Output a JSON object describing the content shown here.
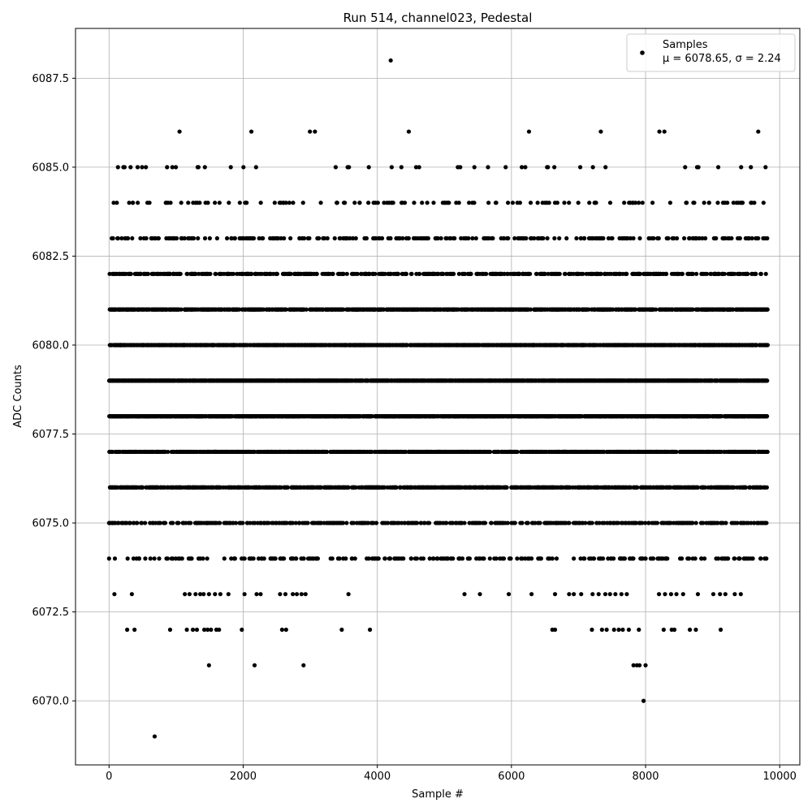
{
  "chart_data": {
    "type": "scatter",
    "title": "Run 514, channel023, Pedestal",
    "xlabel": "Sample #",
    "ylabel": "ADC Counts",
    "xlim": [
      -500,
      10300
    ],
    "ylim": [
      6068.2,
      6088.9
    ],
    "xticks": [
      0,
      2000,
      4000,
      6000,
      8000,
      10000
    ],
    "xtick_labels": [
      "0",
      "2000",
      "4000",
      "6000",
      "8000",
      "10000"
    ],
    "yticks": [
      6070.0,
      6072.5,
      6075.0,
      6077.5,
      6080.0,
      6082.5,
      6085.0,
      6087.5
    ],
    "ytick_labels": [
      "6070.0",
      "6072.5",
      "6075.0",
      "6077.5",
      "6080.0",
      "6082.5",
      "6085.0",
      "6087.5"
    ],
    "grid": true,
    "legend_position": "upper-right",
    "marker_color": "#000000",
    "series": [
      {
        "name": "Samples",
        "legend_line1": "Samples",
        "legend_line2": "μ = 6078.65, σ = 2.24",
        "mean": 6078.65,
        "sigma": 2.24,
        "n_samples": 9820,
        "x_range": [
          0,
          9820
        ],
        "points": [
          {
            "x": 680,
            "y": 6069
          },
          {
            "x": 7970,
            "y": 6070
          },
          {
            "x": 1490,
            "y": 6071
          },
          {
            "x": 2170,
            "y": 6071
          },
          {
            "x": 2900,
            "y": 6071
          },
          {
            "x": 7820,
            "y": 6071
          },
          {
            "x": 7870,
            "y": 6071
          },
          {
            "x": 7910,
            "y": 6071
          },
          {
            "x": 8000,
            "y": 6071
          },
          {
            "x": 270,
            "y": 6072
          },
          {
            "x": 380,
            "y": 6072
          },
          {
            "x": 910,
            "y": 6072
          },
          {
            "x": 1160,
            "y": 6072
          },
          {
            "x": 1250,
            "y": 6072
          },
          {
            "x": 1310,
            "y": 6072
          },
          {
            "x": 1420,
            "y": 6072
          },
          {
            "x": 1470,
            "y": 6072
          },
          {
            "x": 1520,
            "y": 6072
          },
          {
            "x": 1600,
            "y": 6072
          },
          {
            "x": 1640,
            "y": 6072
          },
          {
            "x": 1980,
            "y": 6072
          },
          {
            "x": 2580,
            "y": 6072
          },
          {
            "x": 2640,
            "y": 6072
          },
          {
            "x": 3470,
            "y": 6072
          },
          {
            "x": 3890,
            "y": 6072
          },
          {
            "x": 6610,
            "y": 6072
          },
          {
            "x": 6650,
            "y": 6072
          },
          {
            "x": 7200,
            "y": 6072
          },
          {
            "x": 7350,
            "y": 6072
          },
          {
            "x": 7420,
            "y": 6072
          },
          {
            "x": 7530,
            "y": 6072
          },
          {
            "x": 7600,
            "y": 6072
          },
          {
            "x": 7660,
            "y": 6072
          },
          {
            "x": 7750,
            "y": 6072
          },
          {
            "x": 7900,
            "y": 6072
          },
          {
            "x": 8270,
            "y": 6072
          },
          {
            "x": 8390,
            "y": 6072
          },
          {
            "x": 8430,
            "y": 6072
          },
          {
            "x": 8660,
            "y": 6072
          },
          {
            "x": 8750,
            "y": 6072
          },
          {
            "x": 9120,
            "y": 6072
          },
          {
            "x": 80,
            "y": 6073
          },
          {
            "x": 340,
            "y": 6073
          },
          {
            "x": 1130,
            "y": 6073
          },
          {
            "x": 1200,
            "y": 6073
          },
          {
            "x": 1290,
            "y": 6073
          },
          {
            "x": 1360,
            "y": 6073
          },
          {
            "x": 1410,
            "y": 6073
          },
          {
            "x": 1490,
            "y": 6073
          },
          {
            "x": 1580,
            "y": 6073
          },
          {
            "x": 1660,
            "y": 6073
          },
          {
            "x": 1780,
            "y": 6073
          },
          {
            "x": 2020,
            "y": 6073
          },
          {
            "x": 2200,
            "y": 6073
          },
          {
            "x": 2260,
            "y": 6073
          },
          {
            "x": 2550,
            "y": 6073
          },
          {
            "x": 2630,
            "y": 6073
          },
          {
            "x": 2740,
            "y": 6073
          },
          {
            "x": 2800,
            "y": 6073
          },
          {
            "x": 2870,
            "y": 6073
          },
          {
            "x": 2930,
            "y": 6073
          },
          {
            "x": 3570,
            "y": 6073
          },
          {
            "x": 5300,
            "y": 6073
          },
          {
            "x": 5530,
            "y": 6073
          },
          {
            "x": 5960,
            "y": 6073
          },
          {
            "x": 6300,
            "y": 6073
          },
          {
            "x": 6650,
            "y": 6073
          },
          {
            "x": 6860,
            "y": 6073
          },
          {
            "x": 6930,
            "y": 6073
          },
          {
            "x": 7040,
            "y": 6073
          },
          {
            "x": 7210,
            "y": 6073
          },
          {
            "x": 7300,
            "y": 6073
          },
          {
            "x": 7400,
            "y": 6073
          },
          {
            "x": 7470,
            "y": 6073
          },
          {
            "x": 7550,
            "y": 6073
          },
          {
            "x": 7640,
            "y": 6073
          },
          {
            "x": 7720,
            "y": 6073
          },
          {
            "x": 8200,
            "y": 6073
          },
          {
            "x": 8290,
            "y": 6073
          },
          {
            "x": 8380,
            "y": 6073
          },
          {
            "x": 8460,
            "y": 6073
          },
          {
            "x": 8560,
            "y": 6073
          },
          {
            "x": 8780,
            "y": 6073
          },
          {
            "x": 9010,
            "y": 6073
          },
          {
            "x": 9110,
            "y": 6073
          },
          {
            "x": 9190,
            "y": 6073
          },
          {
            "x": 9330,
            "y": 6073
          },
          {
            "x": 9420,
            "y": 6073
          },
          {
            "x": 7160,
            "y": 6074
          }
        ]
      }
    ]
  }
}
